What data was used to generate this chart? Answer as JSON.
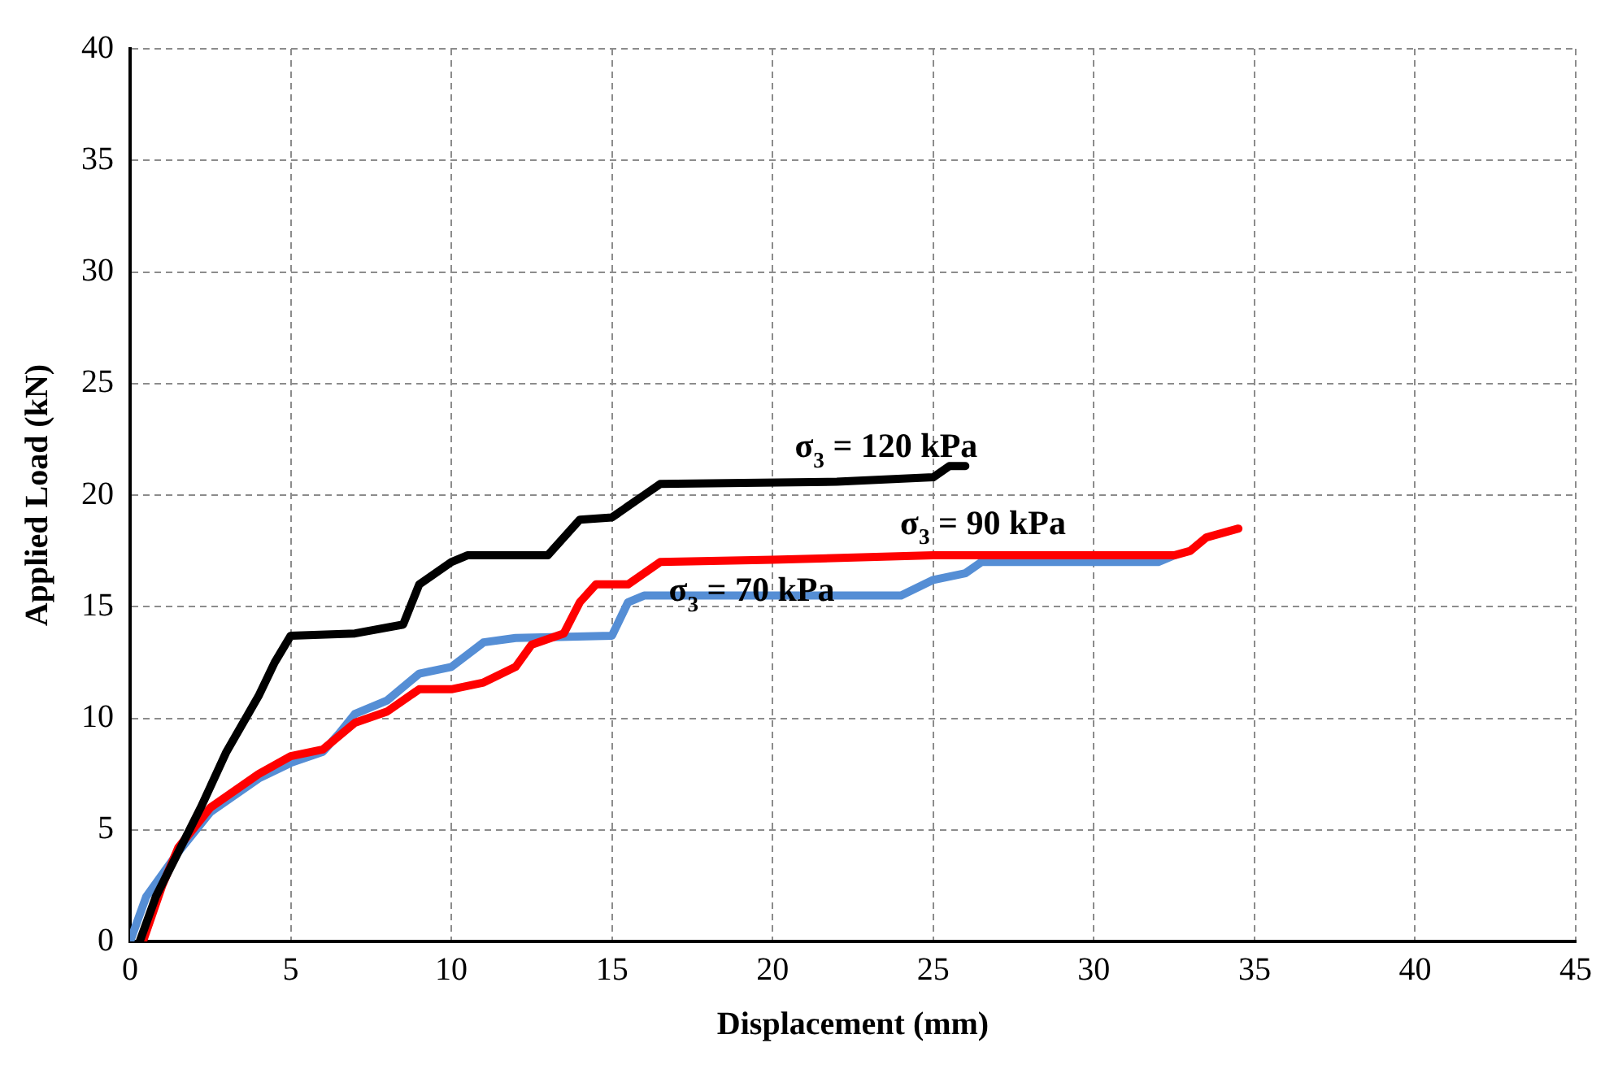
{
  "chart_data": {
    "type": "line",
    "xlabel": "Displacement (mm)",
    "ylabel": "Applied Load (kN)",
    "xlim": [
      0,
      45
    ],
    "xticks": [
      0,
      5,
      10,
      15,
      20,
      25,
      30,
      35,
      40,
      45
    ],
    "ylim": [
      0,
      40
    ],
    "yticks": [
      0,
      5,
      10,
      15,
      20,
      25,
      30,
      35,
      40
    ],
    "grid": true,
    "legend": false,
    "marker": "none",
    "line_style": "solid",
    "series": [
      {
        "name": "σ$_{3}$ = 120 kPa",
        "color": "#000000",
        "x": [
          0.3,
          0.8,
          1.5,
          2.2,
          3,
          4,
          4.5,
          5,
          7,
          8.5,
          9,
          10,
          10.5,
          13,
          14,
          15,
          15.5,
          16,
          16.5,
          22,
          25,
          25.5,
          26
        ],
        "values": [
          0,
          2,
          4,
          6,
          8.5,
          11,
          12.5,
          13.7,
          13.8,
          14.2,
          16,
          17,
          17.3,
          17.3,
          18.9,
          19,
          19.5,
          20,
          20.5,
          20.6,
          20.8,
          21.3,
          21.3
        ]
      },
      {
        "name": "σ$_{3}$ = 90 kPa",
        "color": "#ff0000",
        "x": [
          0.4,
          1,
          1.5,
          2.5,
          4,
          5,
          6,
          7,
          8,
          9,
          10,
          11,
          12,
          12.5,
          13.5,
          14,
          14.5,
          15.5,
          16.5,
          20,
          25,
          32.5,
          33,
          33.5,
          34.5
        ],
        "values": [
          0,
          2.5,
          4.2,
          6,
          7.5,
          8.3,
          8.6,
          9.8,
          10.3,
          11.3,
          11.3,
          11.6,
          12.3,
          13.3,
          13.8,
          15.2,
          16,
          16,
          17,
          17.1,
          17.3,
          17.3,
          17.5,
          18.1,
          18.5
        ]
      },
      {
        "name": "σ$_{3}$ = 70 kPa",
        "color": "#558ed5",
        "x": [
          0,
          0.5,
          1.5,
          2.5,
          4,
          5,
          6,
          6.5,
          7,
          8,
          9,
          10,
          11,
          12,
          15,
          15.5,
          16,
          24,
          25,
          26,
          26.5,
          32,
          32.5
        ],
        "values": [
          0,
          2,
          4,
          5.8,
          7.3,
          8,
          8.5,
          9.3,
          10.2,
          10.8,
          12,
          12.3,
          13.4,
          13.6,
          13.7,
          15.2,
          15.5,
          15.5,
          16.2,
          16.5,
          17,
          17,
          17.3
        ]
      }
    ]
  }
}
